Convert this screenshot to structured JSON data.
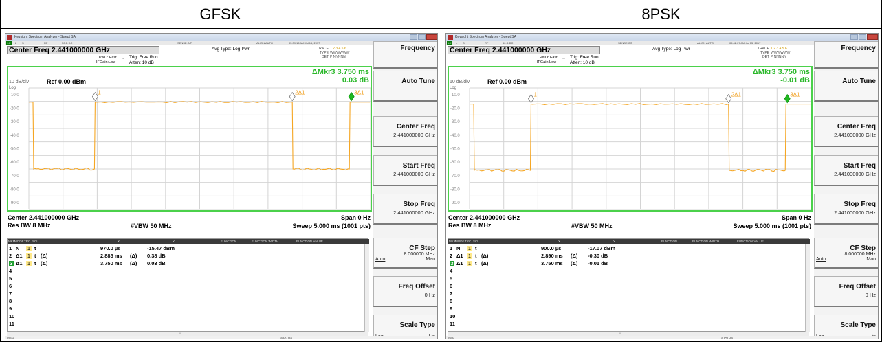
{
  "panels": [
    {
      "label": "GFSK",
      "window_title": "Keysight Spectrum Analyzer - Swept SA",
      "statusline": {
        "lx": "LX",
        "items": [
          "L",
          "S",
          "RF",
          "50 Ω  DC",
          "SENSE:INT",
          "ALIGN AUTO"
        ],
        "datetime": "05:39:16 AM Jul 15, 2017"
      },
      "center_freq_title": "Center Freq 2.441000000 GHz",
      "pno": "PNO: Fast",
      "ifgain": "IFGain:Low",
      "trig": "Trig: Free Run",
      "atten": "Atten: 10 dB",
      "avg_type": "Avg Type: Log-Pwr",
      "trace_labels": {
        "trace": "TRACE",
        "type": "TYPE",
        "det": "DET",
        "trace_vals": "1 2 3 4 5 6",
        "type_vals": "WWWWWW",
        "det_vals": "P NNNNN"
      },
      "marker_readout": {
        "line1": "ΔMkr3 3.750 ms",
        "line2": "0.03 dB"
      },
      "scale": "10 dB/div",
      "ref": "Ref 0.00 dBm",
      "log_label": "Log",
      "y_ticks": [
        "-10.0",
        "-20.0",
        "-30.0",
        "-40.0",
        "-50.0",
        "-60.0",
        "-70.0",
        "-80.0",
        "-90.0"
      ],
      "markers": [
        "1",
        "2Δ1",
        "3Δ1"
      ],
      "footer": {
        "center": "Center 2.441000000 GHz",
        "span": "Span 0 Hz",
        "rbw": "Res BW 8 MHz",
        "vbw": "#VBW 50 MHz",
        "sweep": "Sweep  5.000 ms (1001 pts)"
      },
      "table_header": [
        "MKR",
        "MODE",
        "TRC",
        "SCL",
        "X",
        "Y",
        "FUNCTION",
        "FUNCTION WIDTH",
        "FUNCTION VALUE"
      ],
      "table_rows": [
        {
          "n": "1",
          "mode": "N",
          "trc": "1",
          "scl": "t",
          "delta": "",
          "x": "970.0 µs",
          "ydelta": "",
          "y": "-15.47 dBm"
        },
        {
          "n": "2",
          "mode": "Δ1",
          "trc": "1",
          "scl": "t",
          "delta": "(Δ)",
          "x": "2.885 ms",
          "ydelta": "(Δ)",
          "y": "0.38 dB"
        },
        {
          "n": "3",
          "mode": "Δ1",
          "trc": "1",
          "scl": "t",
          "delta": "(Δ)",
          "x": "3.750 ms",
          "ydelta": "(Δ)",
          "y": "0.03 dB"
        },
        {
          "n": "4"
        },
        {
          "n": "5"
        },
        {
          "n": "6"
        },
        {
          "n": "7"
        },
        {
          "n": "8"
        },
        {
          "n": "9"
        },
        {
          "n": "10"
        },
        {
          "n": "11"
        }
      ],
      "softkeys": [
        {
          "l1": "Frequency"
        },
        {
          "l1": "Auto Tune"
        },
        {
          "l1": "Center Freq",
          "l2": "2.441000000 GHz"
        },
        {
          "l1": "Start Freq",
          "l2": "2.441000000 GHz"
        },
        {
          "l1": "Stop Freq",
          "l2": "2.441000000 GHz"
        },
        {
          "l1": "CF Step",
          "l3": "8.000000 MHz",
          "l4a": "Auto",
          "l4b": "Man"
        },
        {
          "l1": "Freq Offset",
          "l2": "0 Hz"
        },
        {
          "l1": "Scale Type",
          "l4a": "Log",
          "l4b": "Lin"
        }
      ],
      "bottom": {
        "msg": "MSG",
        "status": "STATUS"
      },
      "hscroll_mark": "III",
      "trace_color": "#f5a623",
      "level_high": -15.5,
      "level_low": -65,
      "on_start_ms": 0.97,
      "on_end_ms": 3.855,
      "marker_positions_ms": [
        0.97,
        3.855,
        4.72
      ]
    },
    {
      "label": "8PSK",
      "window_title": "Keysight Spectrum Analyzer - Swept SA",
      "statusline": {
        "lx": "LX",
        "items": [
          "L",
          "S",
          "RF",
          "50 Ω  DC",
          "SENSE:INT",
          "ALIGN AUTO"
        ],
        "datetime": "05:42:07 AM Jul 15, 2017"
      },
      "center_freq_title": "Center Freq 2.441000000 GHz",
      "pno": "PNO: Fast",
      "ifgain": "IFGain:Low",
      "trig": "Trig: Free Run",
      "atten": "Atten: 10 dB",
      "avg_type": "Avg Type: Log-Pwr",
      "trace_labels": {
        "trace": "TRACE",
        "type": "TYPE",
        "det": "DET",
        "trace_vals": "1 2 3 4 5 6",
        "type_vals": "WWWWWW",
        "det_vals": "P NNNNN"
      },
      "marker_readout": {
        "line1": "ΔMkr3 3.750 ms",
        "line2": "-0.01 dB"
      },
      "scale": "10 dB/div",
      "ref": "Ref 0.00 dBm",
      "log_label": "Log",
      "y_ticks": [
        "-10.0",
        "-20.0",
        "-30.0",
        "-40.0",
        "-50.0",
        "-60.0",
        "-70.0",
        "-80.0",
        "-90.0"
      ],
      "markers": [
        "1",
        "2Δ1",
        "3Δ1"
      ],
      "footer": {
        "center": "Center 2.441000000 GHz",
        "span": "Span 0 Hz",
        "rbw": "Res BW 8 MHz",
        "vbw": "#VBW 50 MHz",
        "sweep": "Sweep  5.000 ms (1001 pts)"
      },
      "table_header": [
        "MKR",
        "MODE",
        "TRC",
        "SCL",
        "X",
        "Y",
        "FUNCTION",
        "FUNCTION WIDTH",
        "FUNCTION VALUE"
      ],
      "table_rows": [
        {
          "n": "1",
          "mode": "N",
          "trc": "1",
          "scl": "t",
          "delta": "",
          "x": "900.0 µs",
          "ydelta": "",
          "y": "-17.07 dBm"
        },
        {
          "n": "2",
          "mode": "Δ1",
          "trc": "1",
          "scl": "t",
          "delta": "(Δ)",
          "x": "2.890 ms",
          "ydelta": "(Δ)",
          "y": "-0.30 dB"
        },
        {
          "n": "3",
          "mode": "Δ1",
          "trc": "1",
          "scl": "t",
          "delta": "(Δ)",
          "x": "3.750 ms",
          "ydelta": "(Δ)",
          "y": "-0.01 dB"
        },
        {
          "n": "4"
        },
        {
          "n": "5"
        },
        {
          "n": "6"
        },
        {
          "n": "7"
        },
        {
          "n": "8"
        },
        {
          "n": "9"
        },
        {
          "n": "10"
        },
        {
          "n": "11"
        }
      ],
      "softkeys": [
        {
          "l1": "Frequency"
        },
        {
          "l1": "Auto Tune"
        },
        {
          "l1": "Center Freq",
          "l2": "2.441000000 GHz"
        },
        {
          "l1": "Start Freq",
          "l2": "2.441000000 GHz"
        },
        {
          "l1": "Stop Freq",
          "l2": "2.441000000 GHz"
        },
        {
          "l1": "CF Step",
          "l3": "8.000000 MHz",
          "l4a": "Auto",
          "l4b": "Man"
        },
        {
          "l1": "Freq Offset",
          "l2": "0 Hz"
        },
        {
          "l1": "Scale Type",
          "l4a": "Log",
          "l4b": "Lin"
        }
      ],
      "bottom": {
        "msg": "MSG",
        "status": "STATUS"
      },
      "hscroll_mark": "III",
      "trace_color": "#f5a623",
      "level_high": -17,
      "level_low": -66,
      "on_start_ms": 0.9,
      "on_end_ms": 3.79,
      "marker_positions_ms": [
        0.9,
        3.79,
        4.65
      ]
    }
  ]
}
